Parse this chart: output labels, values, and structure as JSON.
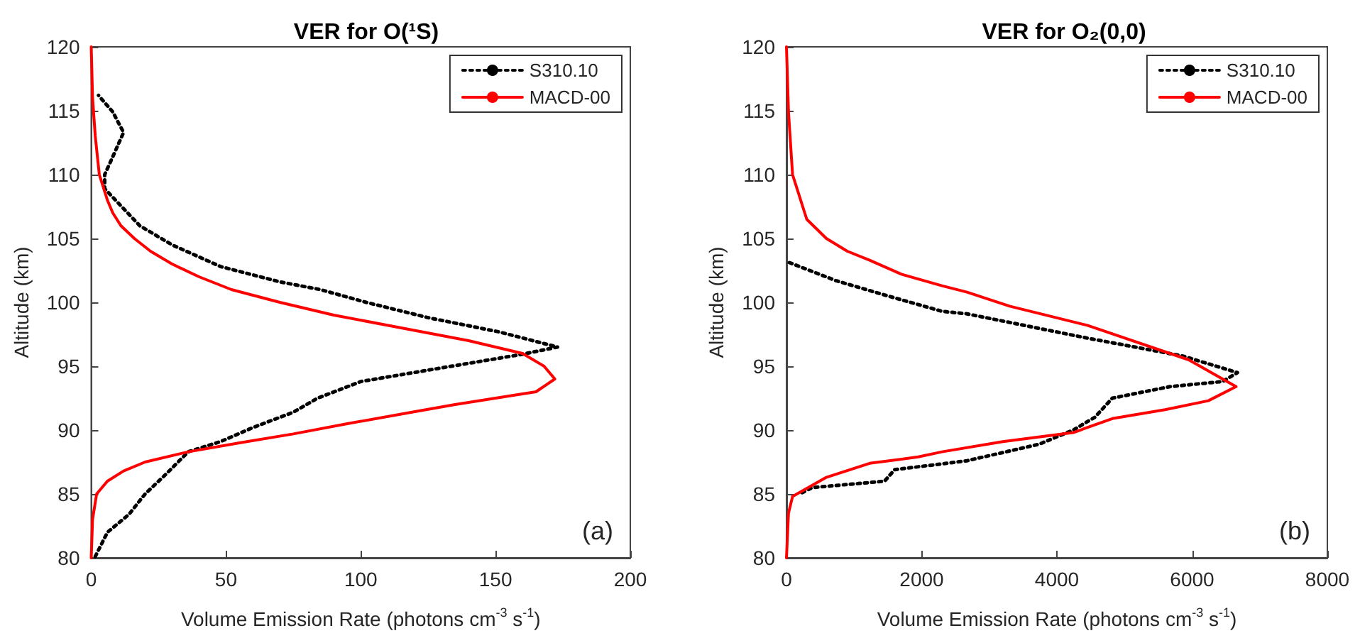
{
  "chart_data": [
    {
      "type": "line",
      "title": "VER for O(¹S)",
      "xlabel": "Volume Emission Rate (photons cm$^{-3}$ s$^{-1}$)",
      "ylabel": "Altitude (km)",
      "xlim": [
        0,
        200
      ],
      "xticks": [
        0,
        50,
        100,
        150,
        200
      ],
      "ylim": [
        80,
        120
      ],
      "yticks": [
        80,
        85,
        90,
        95,
        100,
        105,
        110,
        115,
        120
      ],
      "grid": false,
      "legend": "top right",
      "marker": "none",
      "annotations": [
        "(a)"
      ],
      "series": [
        {
          "name": "S310.10",
          "color": "#000000",
          "line_style": "dotted",
          "x": [
            1.5,
            6,
            14,
            20,
            27,
            36,
            48,
            60,
            75,
            84,
            100,
            128,
            159,
            173,
            151,
            125,
            102,
            85,
            70,
            48,
            30,
            18,
            9,
            5,
            5,
            8,
            12,
            8,
            2.7
          ],
          "values": [
            80.1,
            82,
            83.4,
            85,
            86.4,
            88.3,
            89.1,
            90.2,
            91.4,
            92.5,
            93.8,
            94.8,
            95.9,
            96.5,
            97.7,
            98.8,
            100,
            101,
            101.6,
            102.8,
            104.5,
            106,
            108,
            108.9,
            110,
            111.4,
            113.3,
            114.9,
            116.2
          ]
        },
        {
          "name": "MACD-00",
          "color": "#ff0000",
          "line_style": "solid",
          "x": [
            0,
            0.5,
            2,
            6,
            12,
            20,
            36,
            55,
            75,
            95,
            119,
            135,
            150,
            165,
            172,
            168,
            160,
            140,
            115,
            90,
            70,
            52,
            40,
            30,
            22,
            16,
            11,
            8,
            6,
            3,
            1.5,
            0.5,
            0
          ],
          "values": [
            80,
            83,
            85,
            86,
            86.8,
            87.5,
            88.3,
            89,
            89.7,
            90.5,
            91.4,
            92,
            92.5,
            93,
            94,
            95,
            96,
            97,
            98,
            99,
            100,
            101,
            102,
            103,
            104,
            105,
            106,
            107,
            108,
            110,
            113,
            116,
            120
          ]
        }
      ]
    },
    {
      "type": "line",
      "title": "VER for O₂(0,0)",
      "xlabel": "Volume Emission Rate (photons cm$^{-3}$ s$^{-1}$)",
      "ylabel": "Altitude (km)",
      "xlim": [
        0,
        8000
      ],
      "xticks": [
        0,
        2000,
        4000,
        6000,
        8000
      ],
      "ylim": [
        80,
        120
      ],
      "yticks": [
        80,
        85,
        90,
        95,
        100,
        105,
        110,
        115,
        120
      ],
      "grid": false,
      "legend": "top right",
      "marker": "none",
      "annotations": [
        "(b)"
      ],
      "series": [
        {
          "name": "S310.10",
          "color": "#000000",
          "line_style": "dotted",
          "x": [
            230,
            380,
            1450,
            1600,
            2670,
            3740,
            4240,
            4560,
            4820,
            5670,
            6450,
            6670,
            5860,
            4450,
            2670,
            2300,
            1500,
            730,
            0
          ],
          "values": [
            85.1,
            85.5,
            86,
            86.9,
            87.6,
            88.9,
            90,
            91,
            92.5,
            93.4,
            93.8,
            94.5,
            95.8,
            97.2,
            99.1,
            99.3,
            100.5,
            101.7,
            103.2
          ]
        },
        {
          "name": "MACD-00",
          "color": "#ff0000",
          "line_style": "solid",
          "x": [
            0,
            30,
            90,
            590,
            1230,
            1950,
            2300,
            3200,
            4240,
            4820,
            5600,
            6240,
            6650,
            5950,
            4450,
            3300,
            2670,
            2300,
            1700,
            1230,
            900,
            590,
            300,
            90,
            30,
            0
          ],
          "values": [
            80,
            83.5,
            84.8,
            86.3,
            87.4,
            87.9,
            88.3,
            89.1,
            89.8,
            90.9,
            91.6,
            92.3,
            93.4,
            95.5,
            98.2,
            99.7,
            100.8,
            101.3,
            102.2,
            103.3,
            104,
            105,
            106.5,
            110,
            114.9,
            120
          ]
        }
      ]
    }
  ]
}
